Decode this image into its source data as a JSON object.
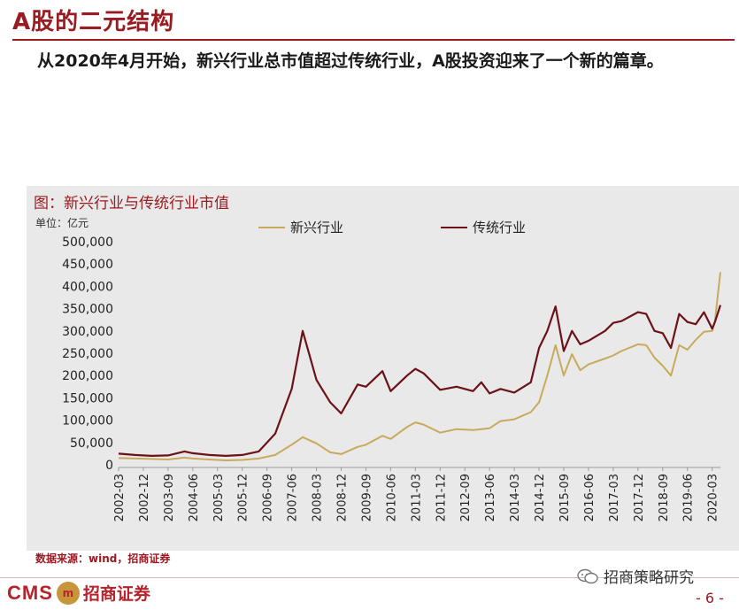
{
  "header": {
    "title": "A股的二元结构",
    "subtitle": "从2020年4月开始，新兴行业总市值超过传统行业，A股投资迎来了一个新的篇章。"
  },
  "footer": {
    "source": "数据来源：wind，招商证券",
    "logo_text": "CMS",
    "logo_name": "招商证券",
    "wechat_name": "招商策略研究",
    "page_number": "- 6 -"
  },
  "colors": {
    "brand": "#9a1b22",
    "series_new": "#c8aa5c",
    "series_traditional": "#6b1219",
    "panel": "#e9e9e9"
  },
  "chart_data": {
    "type": "line",
    "title": "图：新兴行业与传统行业市值",
    "unit_label": "单位：亿元",
    "ylim": [
      0,
      500000
    ],
    "y_ticks": [
      "0",
      "50,000",
      "100,000",
      "150,000",
      "200,000",
      "250,000",
      "300,000",
      "350,000",
      "400,000",
      "450,000",
      "500,000"
    ],
    "x_tick_labels": [
      "2002-03",
      "2002-12",
      "2003-09",
      "2004-06",
      "2005-03",
      "2005-12",
      "2006-09",
      "2007-06",
      "2008-03",
      "2008-12",
      "2009-09",
      "2010-06",
      "2011-03",
      "2011-12",
      "2012-09",
      "2013-06",
      "2014-03",
      "2014-12",
      "2015-09",
      "2016-06",
      "2017-03",
      "2017-12",
      "2018-09",
      "2019-06",
      "2020-03"
    ],
    "x_range": [
      "2002-03",
      "2020-06"
    ],
    "legend_position": "top",
    "series": [
      {
        "name": "新兴行业",
        "color": "#c8aa5c",
        "points": [
          [
            "2002-03",
            15000
          ],
          [
            "2002-09",
            14000
          ],
          [
            "2003-03",
            13000
          ],
          [
            "2003-09",
            12000
          ],
          [
            "2004-03",
            16000
          ],
          [
            "2004-06",
            14000
          ],
          [
            "2004-12",
            12000
          ],
          [
            "2005-06",
            10000
          ],
          [
            "2005-12",
            11000
          ],
          [
            "2006-06",
            14000
          ],
          [
            "2006-12",
            22000
          ],
          [
            "2007-06",
            45000
          ],
          [
            "2007-10",
            62000
          ],
          [
            "2008-03",
            48000
          ],
          [
            "2008-08",
            28000
          ],
          [
            "2008-12",
            24000
          ],
          [
            "2009-06",
            40000
          ],
          [
            "2009-09",
            45000
          ],
          [
            "2010-03",
            65000
          ],
          [
            "2010-06",
            58000
          ],
          [
            "2010-12",
            85000
          ],
          [
            "2011-03",
            95000
          ],
          [
            "2011-06",
            90000
          ],
          [
            "2011-12",
            72000
          ],
          [
            "2012-06",
            80000
          ],
          [
            "2012-12",
            78000
          ],
          [
            "2013-06",
            82000
          ],
          [
            "2013-10",
            98000
          ],
          [
            "2014-03",
            102000
          ],
          [
            "2014-09",
            118000
          ],
          [
            "2014-12",
            140000
          ],
          [
            "2015-03",
            200000
          ],
          [
            "2015-06",
            268000
          ],
          [
            "2015-09",
            200000
          ],
          [
            "2015-12",
            248000
          ],
          [
            "2016-03",
            212000
          ],
          [
            "2016-06",
            225000
          ],
          [
            "2016-12",
            238000
          ],
          [
            "2017-03",
            245000
          ],
          [
            "2017-06",
            255000
          ],
          [
            "2017-12",
            270000
          ],
          [
            "2018-03",
            268000
          ],
          [
            "2018-06",
            240000
          ],
          [
            "2018-09",
            222000
          ],
          [
            "2018-12",
            200000
          ],
          [
            "2019-03",
            268000
          ],
          [
            "2019-06",
            258000
          ],
          [
            "2019-09",
            280000
          ],
          [
            "2019-12",
            298000
          ],
          [
            "2020-03",
            300000
          ],
          [
            "2020-04",
            322000
          ],
          [
            "2020-06",
            432000
          ]
        ]
      },
      {
        "name": "传统行业",
        "color": "#6b1219",
        "points": [
          [
            "2002-03",
            25000
          ],
          [
            "2002-09",
            22000
          ],
          [
            "2003-03",
            20000
          ],
          [
            "2003-09",
            21000
          ],
          [
            "2004-03",
            30000
          ],
          [
            "2004-06",
            26000
          ],
          [
            "2004-12",
            22000
          ],
          [
            "2005-06",
            20000
          ],
          [
            "2005-12",
            22000
          ],
          [
            "2006-06",
            30000
          ],
          [
            "2006-12",
            70000
          ],
          [
            "2007-06",
            170000
          ],
          [
            "2007-10",
            300000
          ],
          [
            "2008-03",
            190000
          ],
          [
            "2008-08",
            140000
          ],
          [
            "2008-12",
            115000
          ],
          [
            "2009-06",
            180000
          ],
          [
            "2009-09",
            175000
          ],
          [
            "2010-03",
            210000
          ],
          [
            "2010-06",
            165000
          ],
          [
            "2010-12",
            200000
          ],
          [
            "2011-03",
            215000
          ],
          [
            "2011-06",
            205000
          ],
          [
            "2011-12",
            168000
          ],
          [
            "2012-06",
            175000
          ],
          [
            "2012-12",
            165000
          ],
          [
            "2013-03",
            185000
          ],
          [
            "2013-06",
            160000
          ],
          [
            "2013-10",
            170000
          ],
          [
            "2014-03",
            162000
          ],
          [
            "2014-09",
            185000
          ],
          [
            "2014-12",
            262000
          ],
          [
            "2015-03",
            300000
          ],
          [
            "2015-06",
            355000
          ],
          [
            "2015-09",
            255000
          ],
          [
            "2015-12",
            300000
          ],
          [
            "2016-03",
            270000
          ],
          [
            "2016-06",
            278000
          ],
          [
            "2016-12",
            300000
          ],
          [
            "2017-03",
            318000
          ],
          [
            "2017-06",
            322000
          ],
          [
            "2017-12",
            342000
          ],
          [
            "2018-03",
            338000
          ],
          [
            "2018-06",
            300000
          ],
          [
            "2018-09",
            295000
          ],
          [
            "2018-12",
            262000
          ],
          [
            "2019-03",
            338000
          ],
          [
            "2019-06",
            320000
          ],
          [
            "2019-09",
            315000
          ],
          [
            "2019-12",
            342000
          ],
          [
            "2020-03",
            305000
          ],
          [
            "2020-04",
            320000
          ],
          [
            "2020-06",
            358000
          ]
        ]
      }
    ]
  }
}
